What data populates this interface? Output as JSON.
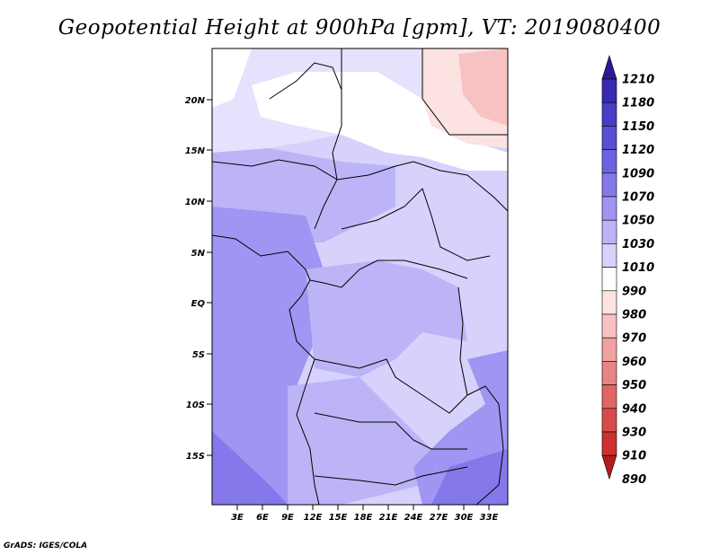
{
  "title": "Geopotential Height at 900hPa [gpm], VT: 2019080400",
  "credit": "GrADS: IGES/COLA",
  "map": {
    "lat_labels": [
      "20N",
      "15N",
      "10N",
      "5N",
      "EQ",
      "5S",
      "10S",
      "15S"
    ],
    "lon_labels": [
      "3E",
      "6E",
      "9E",
      "12E",
      "15E",
      "18E",
      "21E",
      "24E",
      "27E",
      "30E",
      "33E"
    ]
  },
  "colorbar": {
    "labels": [
      "1210",
      "1180",
      "1150",
      "1120",
      "1090",
      "1070",
      "1050",
      "1030",
      "1010",
      "990",
      "980",
      "970",
      "960",
      "950",
      "940",
      "930",
      "910",
      "890"
    ],
    "colors": [
      "#2a1a96",
      "#3a2ab0",
      "#4a3cc4",
      "#5a4ed2",
      "#6e62e0",
      "#8478ea",
      "#a095f2",
      "#bcb4f7",
      "#d6d2fb",
      "#ffffff",
      "#fde2e2",
      "#f8c2c2",
      "#f0a2a2",
      "#e88484",
      "#e06666",
      "#d84a4a",
      "#cc3030",
      "#b41c1c"
    ]
  },
  "colors": {
    "white_zone": "#ffffff",
    "very_light": "#e4e2fc",
    "light": "#d6d2fb",
    "mid": "#bcb4f7",
    "strong": "#a095f2",
    "deep": "#8478ea",
    "pink_light": "#fde2e2",
    "pink_mid": "#f8c2c2"
  }
}
